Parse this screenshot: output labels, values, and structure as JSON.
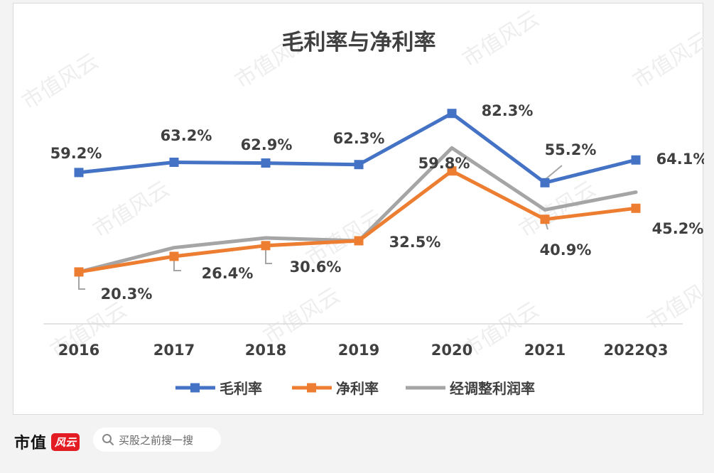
{
  "chart_data": {
    "type": "line",
    "title": "毛利率与净利率",
    "categories": [
      "2016",
      "2017",
      "2018",
      "2019",
      "2020",
      "2021",
      "2022Q3"
    ],
    "series": [
      {
        "name": "毛利率",
        "color": "#4472c4",
        "values": [
          59.2,
          63.2,
          62.9,
          62.3,
          82.3,
          55.2,
          64.1
        ],
        "labels": [
          "59.2%",
          "63.2%",
          "62.9%",
          "62.3%",
          "82.3%",
          "55.2%",
          "64.1%"
        ]
      },
      {
        "name": "净利率",
        "color": "#ed7d31",
        "values": [
          20.3,
          26.4,
          30.6,
          32.5,
          59.8,
          40.9,
          45.2
        ],
        "labels": [
          "20.3%",
          "26.4%",
          "30.6%",
          "32.5%",
          "59.8%",
          "40.9%",
          "45.2%"
        ]
      },
      {
        "name": "经调整利润率",
        "color": "#a5a5a5",
        "values": [
          20.3,
          29.8,
          33.6,
          32.5,
          68.8,
          44.6,
          51.5
        ]
      }
    ],
    "ylim": [
      0,
      100
    ],
    "grid": false,
    "legend": "bottom"
  },
  "footer": {
    "brand": "市值",
    "brand_seal": "风云",
    "search_placeholder": "买股之前搜一搜"
  },
  "watermark": "市值风云"
}
